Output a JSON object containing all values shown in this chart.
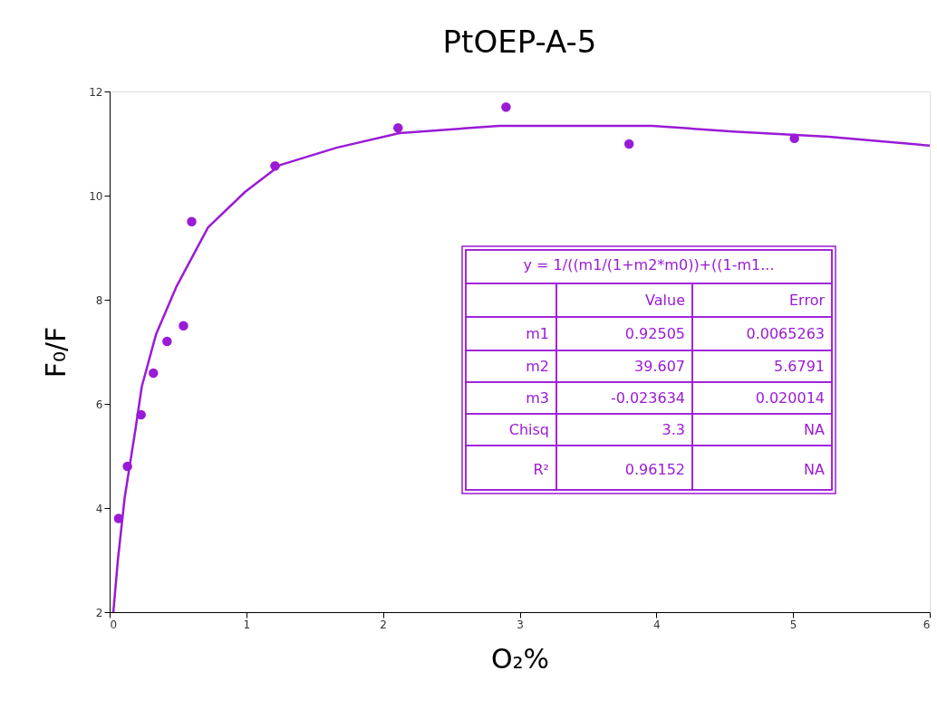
{
  "chart_data": {
    "type": "scatter",
    "title": "PtOEP-A-5",
    "xlabel": "O₂%",
    "ylabel": "F₀/F",
    "xlim": [
      0,
      6
    ],
    "ylim": [
      2,
      12
    ],
    "xticks": [
      0,
      1,
      2,
      3,
      4,
      5,
      6
    ],
    "yticks": [
      2,
      4,
      6,
      8,
      10,
      12
    ],
    "grid": false,
    "series": [
      {
        "marker": "circle",
        "color": "#9a1ad6",
        "x": [
          0.066,
          0.13,
          0.23,
          0.32,
          0.42,
          0.54,
          0.6,
          1.21,
          2.11,
          2.9,
          3.8,
          5.01
        ],
        "values": [
          3.8,
          4.8,
          5.79,
          6.59,
          7.2,
          7.5,
          9.5,
          10.57,
          11.3,
          11.7,
          10.99,
          11.1
        ]
      },
      {
        "type": "line",
        "marker": "none",
        "line_style": "solid",
        "color": "#9a1ad6",
        "x": [
          0.027,
          0.06,
          0.11,
          0.19,
          0.235,
          0.34,
          0.49,
          0.72,
          0.99,
          1.25,
          1.66,
          2.12,
          2.85,
          3.97,
          4.56,
          5.26,
          6.0
        ],
        "values": [
          2.0,
          3.0,
          4.2,
          5.53,
          6.33,
          7.34,
          8.26,
          9.39,
          10.07,
          10.59,
          10.92,
          11.2,
          11.34,
          11.34,
          11.23,
          11.13,
          10.96
        ]
      }
    ],
    "annotations": [
      "y = 1/((m1/(1+m2*m0))+((1-m1...",
      "Value",
      "Error",
      "m1",
      "0.92505",
      "0.0065263",
      "m2",
      "39.607",
      "5.6791",
      "m3",
      "-0.023634",
      "0.020014",
      "Chisq",
      "3.3",
      "NA",
      "R²",
      "0.96152",
      "NA"
    ]
  }
}
